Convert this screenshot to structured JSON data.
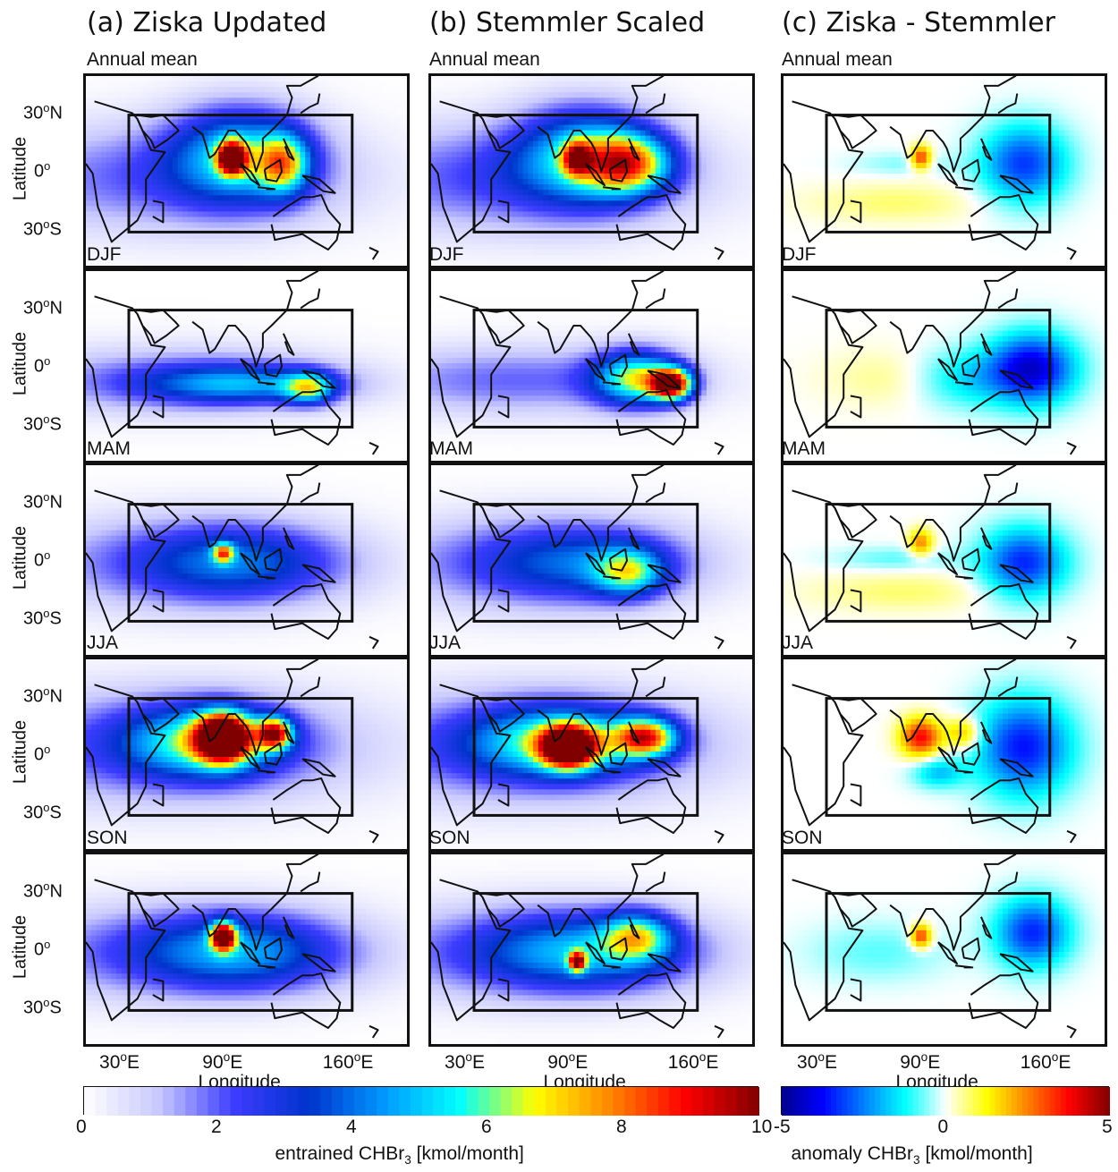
{
  "columns": [
    {
      "title": "(a) Ziska Updated",
      "kind": "abs"
    },
    {
      "title": "(b) Stemmler Scaled",
      "kind": "abs"
    },
    {
      "title": "(c) Ziska - Stemmler",
      "kind": "anom"
    }
  ],
  "rows": [
    "Annual mean",
    "DJF",
    "MAM",
    "JJA",
    "SON"
  ],
  "axes": {
    "ylabel": "Latitude",
    "xlabel": "Longitude",
    "lat_ticks": [
      {
        "deg": "30",
        "sup": "o",
        "hemi": "N"
      },
      {
        "deg": "0",
        "sup": "o",
        "hemi": ""
      },
      {
        "deg": "30",
        "sup": "o",
        "hemi": "S"
      }
    ],
    "lon_ticks": [
      {
        "deg": "30",
        "sup": "o",
        "hemi": "E"
      },
      {
        "deg": "90",
        "sup": "o",
        "hemi": "E"
      },
      {
        "deg": "160",
        "sup": "o",
        "hemi": "E"
      }
    ]
  },
  "colorbars": {
    "abs": {
      "ticks": [
        "0",
        "2",
        "4",
        "6",
        "8",
        "10"
      ],
      "title_pre": "entrained CHBr",
      "title_sub": "3",
      "title_post": " [kmol/month]",
      "range": [
        0,
        10
      ],
      "colors": [
        "#ffffff",
        "#c8c8ff",
        "#3c3cff",
        "#0033cc",
        "#0099ff",
        "#00ffff",
        "#ffff00",
        "#ff8800",
        "#ff0000",
        "#800000"
      ]
    },
    "anom": {
      "ticks": [
        "-5",
        "0",
        "5"
      ],
      "title_pre": "anomaly CHBr",
      "title_sub": "3",
      "title_post": " [kmol/month]",
      "range": [
        -5,
        5
      ],
      "colors": [
        "#00008f",
        "#0000ff",
        "#0080ff",
        "#00ffff",
        "#ffffff",
        "#ffff00",
        "#ff8000",
        "#ff0000",
        "#800000"
      ]
    }
  },
  "fields": {
    "abs": [
      [
        {
          "x": 95,
          "y": 10,
          "a": 40,
          "b": 25,
          "v": 4.2
        },
        {
          "x": 50,
          "y": -2,
          "a": 110,
          "b": 28,
          "v": 2.0
        },
        {
          "x": 90,
          "y": 8,
          "a": 8,
          "b": 8,
          "v": 8.5
        },
        {
          "x": 120,
          "y": 5,
          "a": 15,
          "b": 15,
          "v": 4.5
        }
      ],
      [
        {
          "x": 95,
          "y": 10,
          "a": 40,
          "b": 25,
          "v": 4.2
        },
        {
          "x": 50,
          "y": -2,
          "a": 110,
          "b": 28,
          "v": 2.2
        },
        {
          "x": 90,
          "y": 8,
          "a": 8,
          "b": 8,
          "v": 5.0
        },
        {
          "x": 120,
          "y": 5,
          "a": 25,
          "b": 15,
          "v": 5.5
        }
      ],
      [
        {
          "x": 95,
          "y": -8,
          "a": 55,
          "b": 10,
          "v": 3.4
        },
        {
          "x": 55,
          "y": -6,
          "a": 100,
          "b": 18,
          "v": 1.8
        },
        {
          "x": 135,
          "y": -10,
          "a": 15,
          "b": 8,
          "v": 4.4
        }
      ],
      [
        {
          "x": 145,
          "y": -8,
          "a": 12,
          "b": 8,
          "v": 8.5
        },
        {
          "x": 125,
          "y": -5,
          "a": 25,
          "b": 14,
          "v": 5.5
        },
        {
          "x": 55,
          "y": -6,
          "a": 100,
          "b": 18,
          "v": 1.9
        }
      ],
      [
        {
          "x": 95,
          "y": 0,
          "a": 60,
          "b": 20,
          "v": 2.8
        },
        {
          "x": 55,
          "y": 0,
          "a": 100,
          "b": 25,
          "v": 1.6
        },
        {
          "x": 85,
          "y": 5,
          "a": 6,
          "b": 5,
          "v": 5.0
        }
      ],
      [
        {
          "x": 95,
          "y": 0,
          "a": 60,
          "b": 20,
          "v": 2.6
        },
        {
          "x": 55,
          "y": 0,
          "a": 100,
          "b": 25,
          "v": 1.6
        },
        {
          "x": 120,
          "y": -5,
          "a": 20,
          "b": 12,
          "v": 4.0
        }
      ],
      [
        {
          "x": 85,
          "y": 10,
          "a": 15,
          "b": 12,
          "v": 9.5
        },
        {
          "x": 115,
          "y": 12,
          "a": 10,
          "b": 8,
          "v": 7.0
        },
        {
          "x": 75,
          "y": 8,
          "a": 45,
          "b": 18,
          "v": 4.5
        },
        {
          "x": 50,
          "y": 5,
          "a": 120,
          "b": 30,
          "v": 2.2
        }
      ],
      [
        {
          "x": 85,
          "y": 5,
          "a": 15,
          "b": 10,
          "v": 9.5
        },
        {
          "x": 130,
          "y": 10,
          "a": 18,
          "b": 10,
          "v": 6.5
        },
        {
          "x": 80,
          "y": 8,
          "a": 50,
          "b": 18,
          "v": 4.5
        },
        {
          "x": 55,
          "y": 5,
          "a": 120,
          "b": 30,
          "v": 2.2
        }
      ],
      [
        {
          "x": 85,
          "y": 8,
          "a": 7,
          "b": 7,
          "v": 8.8
        },
        {
          "x": 95,
          "y": 0,
          "a": 60,
          "b": 20,
          "v": 3.2
        },
        {
          "x": 55,
          "y": 0,
          "a": 110,
          "b": 25,
          "v": 1.8
        }
      ],
      [
        {
          "x": 95,
          "y": 0,
          "a": 60,
          "b": 20,
          "v": 3.4
        },
        {
          "x": 55,
          "y": 0,
          "a": 110,
          "b": 25,
          "v": 1.8
        },
        {
          "x": 90,
          "y": -5,
          "a": 5,
          "b": 5,
          "v": 6.5
        },
        {
          "x": 125,
          "y": 8,
          "a": 20,
          "b": 12,
          "v": 4.2
        }
      ]
    ],
    "anom": [
      [
        {
          "x": 145,
          "y": 5,
          "a": 25,
          "b": 20,
          "v": -3.2
        },
        {
          "x": 85,
          "y": 8,
          "a": 6,
          "b": 6,
          "v": 3.5
        },
        {
          "x": 70,
          "y": -15,
          "a": 50,
          "b": 10,
          "v": 0.7
        },
        {
          "x": 75,
          "y": 5,
          "a": 30,
          "b": 6,
          "v": -0.6
        }
      ],
      [
        {
          "x": 150,
          "y": 0,
          "a": 25,
          "b": 18,
          "v": -4.2
        },
        {
          "x": 110,
          "y": -5,
          "a": 30,
          "b": 15,
          "v": -1.6
        },
        {
          "x": 70,
          "y": -5,
          "a": 40,
          "b": 15,
          "v": 0.6
        }
      ],
      [
        {
          "x": 145,
          "y": 0,
          "a": 25,
          "b": 18,
          "v": -3.4
        },
        {
          "x": 85,
          "y": 10,
          "a": 7,
          "b": 7,
          "v": 2.5
        },
        {
          "x": 75,
          "y": -15,
          "a": 55,
          "b": 10,
          "v": 0.7
        },
        {
          "x": 70,
          "y": 2,
          "a": 35,
          "b": 6,
          "v": -0.8
        }
      ],
      [
        {
          "x": 145,
          "y": 5,
          "a": 28,
          "b": 25,
          "v": -3.6
        },
        {
          "x": 85,
          "y": 10,
          "a": 12,
          "b": 10,
          "v": 3.8
        },
        {
          "x": 110,
          "y": 12,
          "a": 10,
          "b": 8,
          "v": 2.2
        },
        {
          "x": 95,
          "y": -8,
          "a": 15,
          "b": 8,
          "v": -1.8
        }
      ],
      [
        {
          "x": 150,
          "y": 10,
          "a": 22,
          "b": 18,
          "v": -3.4
        },
        {
          "x": 85,
          "y": 8,
          "a": 6,
          "b": 6,
          "v": 3.5
        },
        {
          "x": 60,
          "y": 0,
          "a": 40,
          "b": 15,
          "v": -0.8
        }
      ]
    ]
  }
}
